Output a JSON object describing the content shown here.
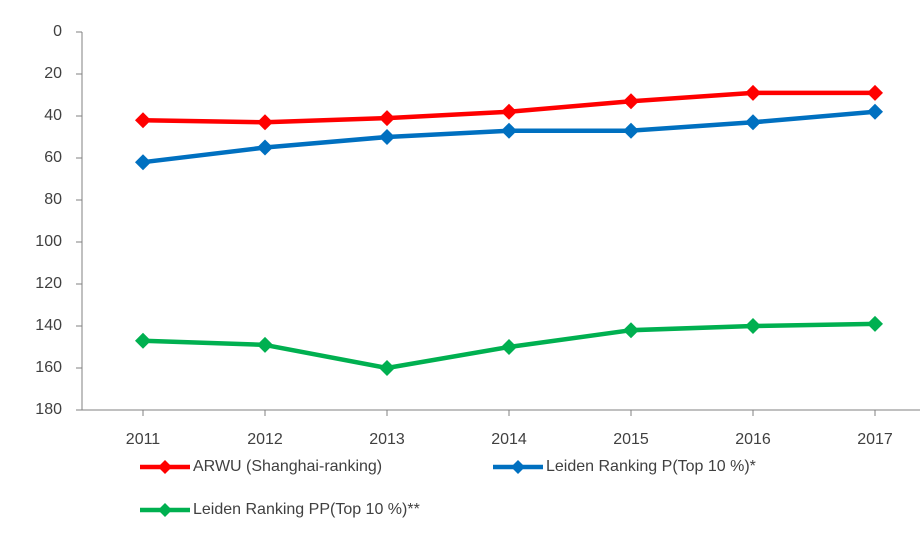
{
  "chart_data": {
    "type": "line",
    "categories": [
      "2011",
      "2012",
      "2013",
      "2014",
      "2015",
      "2016",
      "2017"
    ],
    "series": [
      {
        "name": "ARWU (Shanghai-ranking)",
        "color": "#ff0000",
        "values": [
          42,
          43,
          41,
          38,
          33,
          29,
          29
        ]
      },
      {
        "name": "Leiden Ranking P(Top 10 %)*",
        "color": "#0070c0",
        "values": [
          62,
          55,
          50,
          47,
          47,
          43,
          38
        ]
      },
      {
        "name": "Leiden Ranking PP(Top 10 %)**",
        "color": "#00b050",
        "values": [
          147,
          149,
          160,
          150,
          142,
          140,
          139
        ]
      }
    ],
    "ylim": [
      0,
      180
    ],
    "yticks": [
      0,
      20,
      40,
      60,
      80,
      100,
      120,
      140,
      160,
      180
    ],
    "y_inverted": true,
    "grid": false,
    "legend": "bottom"
  }
}
